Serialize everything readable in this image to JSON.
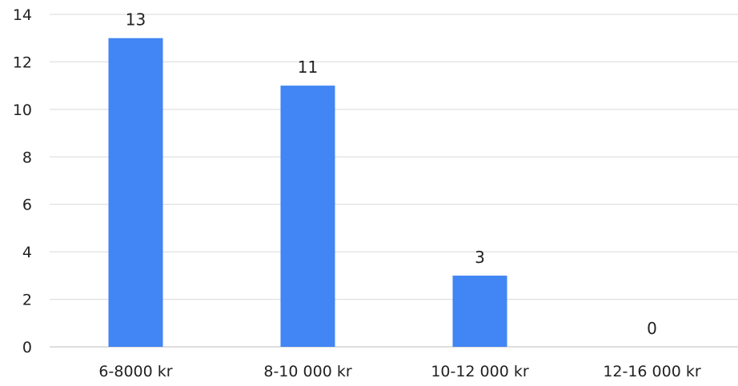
{
  "chart_data": {
    "type": "bar",
    "title": "",
    "xlabel": "",
    "ylabel": "",
    "categories": [
      "6-8000 kr",
      "8-10 000 kr",
      "10-12 000 kr",
      "12-16 000 kr"
    ],
    "values": [
      13,
      11,
      3,
      0
    ],
    "data_labels": [
      "13",
      "11",
      "3",
      "0"
    ],
    "ylim": [
      0,
      14
    ],
    "y_ticks": [
      0,
      2,
      4,
      6,
      8,
      10,
      12,
      14
    ],
    "grid": true,
    "legend": "none",
    "colors": {
      "bar": "#4285f4",
      "grid": "#d9d9d9",
      "axis": "#bdbdbd",
      "text": "#222222"
    }
  }
}
